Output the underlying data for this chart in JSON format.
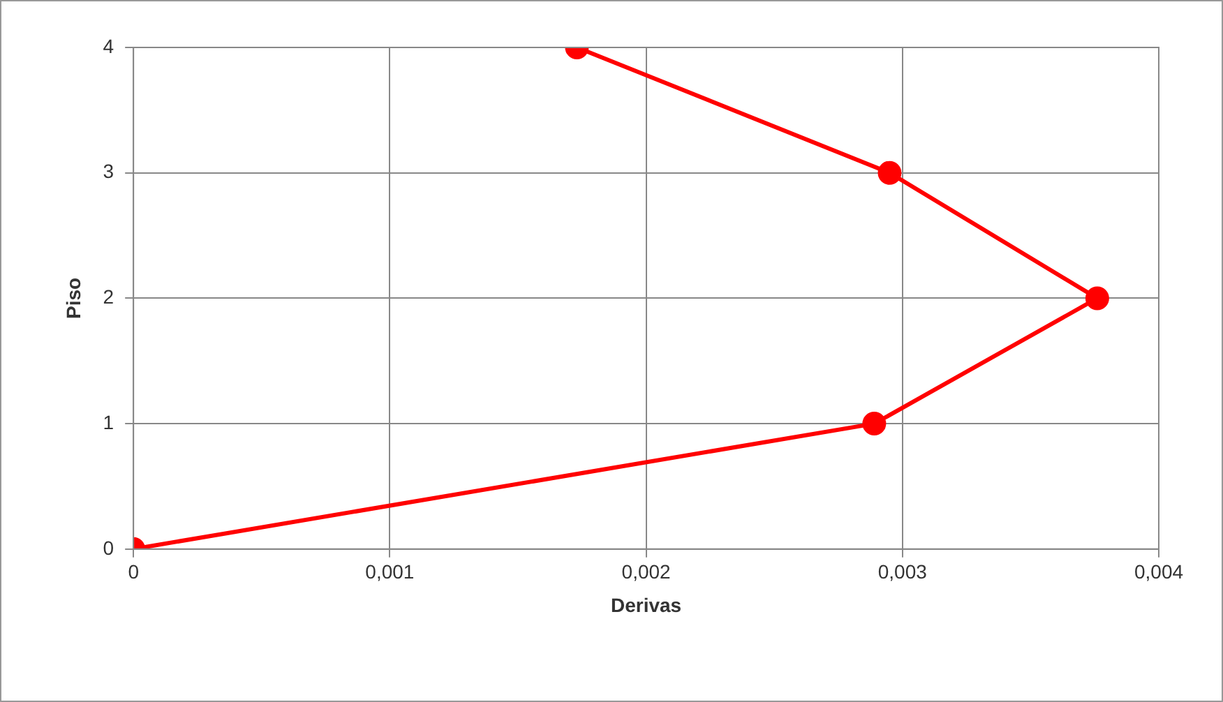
{
  "chart_data": {
    "type": "line",
    "xlabel": "Derivas",
    "ylabel": "Piso",
    "series": [
      {
        "color": "#ff0000",
        "x": [
          0,
          0.00289,
          0.00376,
          0.00295,
          0.00173
        ],
        "values": [
          0,
          1,
          2,
          3,
          4
        ]
      }
    ],
    "xlim": [
      0,
      0.004
    ],
    "xticks": [
      0,
      {
        "value": 0.001,
        "label": "0,001"
      },
      {
        "value": 0.002,
        "label": "0,002"
      },
      {
        "value": 0.003,
        "label": "0,003"
      },
      {
        "value": 0.004,
        "label": "0,004"
      }
    ],
    "ylim": [
      0,
      4
    ],
    "yticks": [
      0,
      1,
      2,
      3,
      4
    ],
    "grid": true,
    "legend": false,
    "marker": "circle",
    "line_style": "solid"
  }
}
